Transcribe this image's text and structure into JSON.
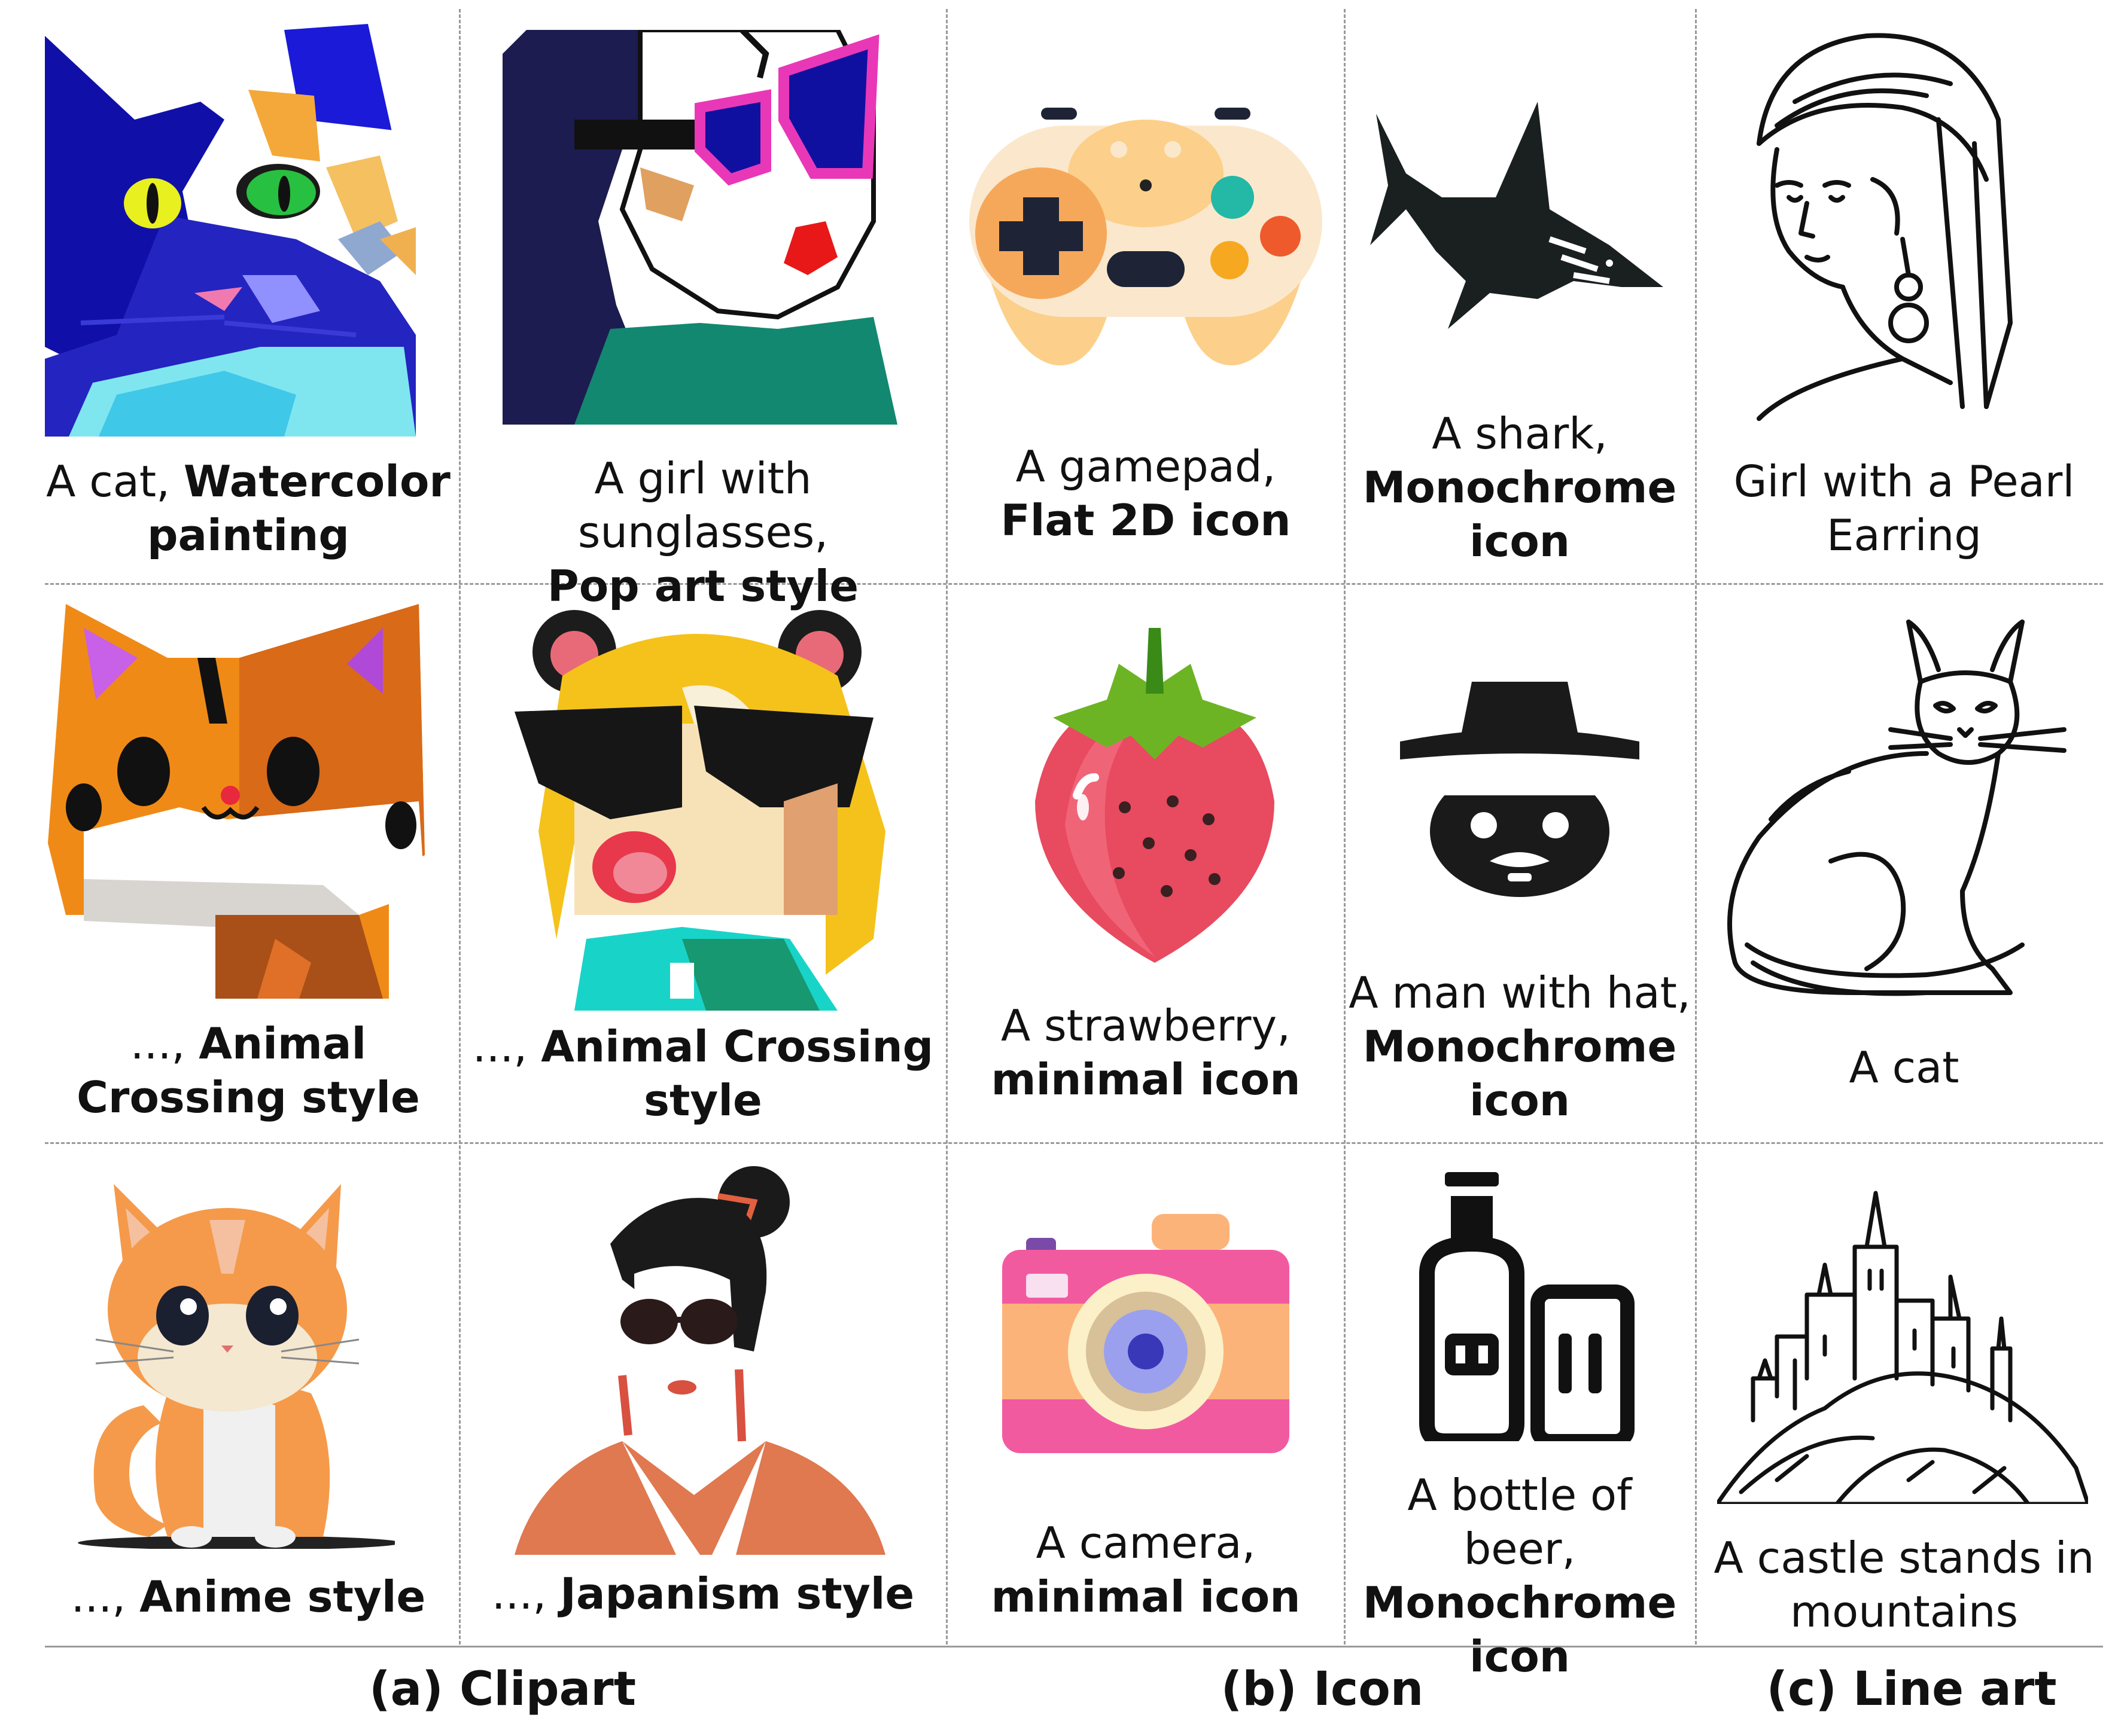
{
  "cells": [
    {
      "id": "r1c1",
      "art": "watercolor-cat",
      "caption": {
        "plain": "A cat, ",
        "bold": "Watercolor painting"
      }
    },
    {
      "id": "r1c2",
      "art": "popart-girl",
      "caption": {
        "plain": "A girl with sunglasses, ",
        "bold": "Pop art style"
      }
    },
    {
      "id": "r1c3",
      "art": "gamepad",
      "caption": {
        "plain": "A gamepad, ",
        "bold": "Flat 2D icon"
      }
    },
    {
      "id": "r1c4",
      "art": "shark",
      "caption": {
        "plain": "A shark, ",
        "bold": "Monochrome icon"
      }
    },
    {
      "id": "r1c5",
      "art": "pearl-girl",
      "caption": {
        "plain": "Girl with a Pearl Earring",
        "bold": ""
      }
    },
    {
      "id": "r2c1",
      "art": "ac-cat",
      "caption": {
        "plain": "..., ",
        "bold": "Animal Crossing style"
      }
    },
    {
      "id": "r2c2",
      "art": "ac-girl",
      "caption": {
        "plain": "..., ",
        "bold": "Animal Crossing style"
      }
    },
    {
      "id": "r2c3",
      "art": "strawberry",
      "caption": {
        "plain": "A strawberry, ",
        "bold": "minimal icon"
      }
    },
    {
      "id": "r2c4",
      "art": "hat-man",
      "caption": {
        "plain": "A man with hat, ",
        "bold": "Monochrome icon"
      }
    },
    {
      "id": "r2c5",
      "art": "line-cat",
      "caption": {
        "plain": "A cat",
        "bold": ""
      }
    },
    {
      "id": "r3c1",
      "art": "anime-cat",
      "caption": {
        "plain": "..., ",
        "bold": "Anime style"
      }
    },
    {
      "id": "r3c2",
      "art": "japanism-woman",
      "caption": {
        "plain": "..., ",
        "bold": "Japanism style"
      }
    },
    {
      "id": "r3c3",
      "art": "camera",
      "caption": {
        "plain": "A camera, ",
        "bold": "minimal icon"
      }
    },
    {
      "id": "r3c4",
      "art": "beer",
      "caption": {
        "plain": "A bottle of beer, ",
        "bold": "Monochrome icon"
      }
    },
    {
      "id": "r3c5",
      "art": "castle",
      "caption": {
        "plain": "A castle stands in mountains",
        "bold": ""
      }
    }
  ],
  "groups": [
    {
      "id": "clipart",
      "label": "(a) Clipart"
    },
    {
      "id": "icon",
      "label": "(b) Icon"
    },
    {
      "id": "lineart",
      "label": "(c) Line art"
    }
  ],
  "colors": {
    "divider": "#9a9a9a",
    "cat_blue": "#1212b0",
    "pop_magenta": "#e8289c",
    "gamepad_body": "#fbe8cc",
    "strawberry_red": "#e84a5f",
    "camera_pink": "#f25aa0",
    "anime_orange": "#f59a4a",
    "kimono_orange": "#e07850",
    "mono": "#111111"
  }
}
